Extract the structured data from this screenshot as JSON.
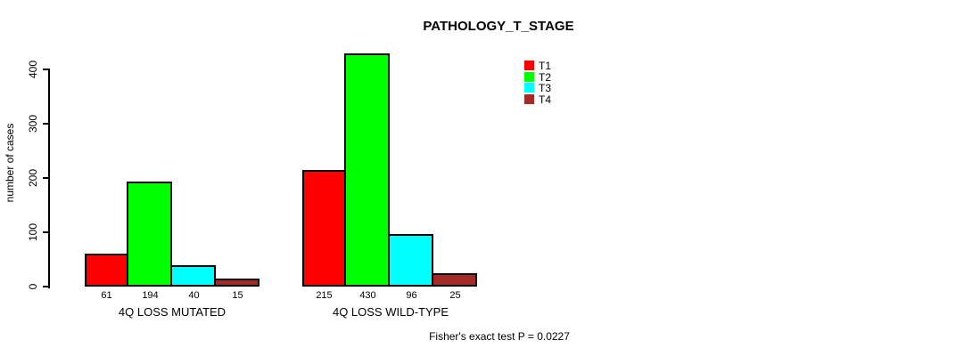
{
  "title": "PATHOLOGY_T_STAGE",
  "footnote": "Fisher's exact test P = 0.0227",
  "chart_data": {
    "type": "bar",
    "title": "PATHOLOGY_T_STAGE",
    "ylabel": "number of cases",
    "xlabel": "",
    "categories": [
      "4Q LOSS MUTATED",
      "4Q LOSS WILD-TYPE"
    ],
    "series": [
      {
        "name": "T1",
        "color": "#FF0000",
        "values": [
          61,
          215
        ]
      },
      {
        "name": "T2",
        "color": "#00FF00",
        "values": [
          194,
          430
        ]
      },
      {
        "name": "T3",
        "color": "#00FFFF",
        "values": [
          40,
          96
        ]
      },
      {
        "name": "T4",
        "color": "#A52A2A",
        "values": [
          15,
          25
        ]
      }
    ],
    "bar_value_labels": [
      [
        "61",
        "194",
        "40",
        "15"
      ],
      [
        "215",
        "430",
        "96",
        "25"
      ]
    ],
    "yticks": [
      "0",
      "100",
      "200",
      "300",
      "400"
    ],
    "ylim": [
      0,
      440
    ],
    "grid": false,
    "legend_entries": [
      "T1",
      "T2",
      "T3",
      "T4"
    ],
    "legend_position": "top-right-of-plot",
    "annotation": "Fisher's exact test P = 0.0227"
  }
}
